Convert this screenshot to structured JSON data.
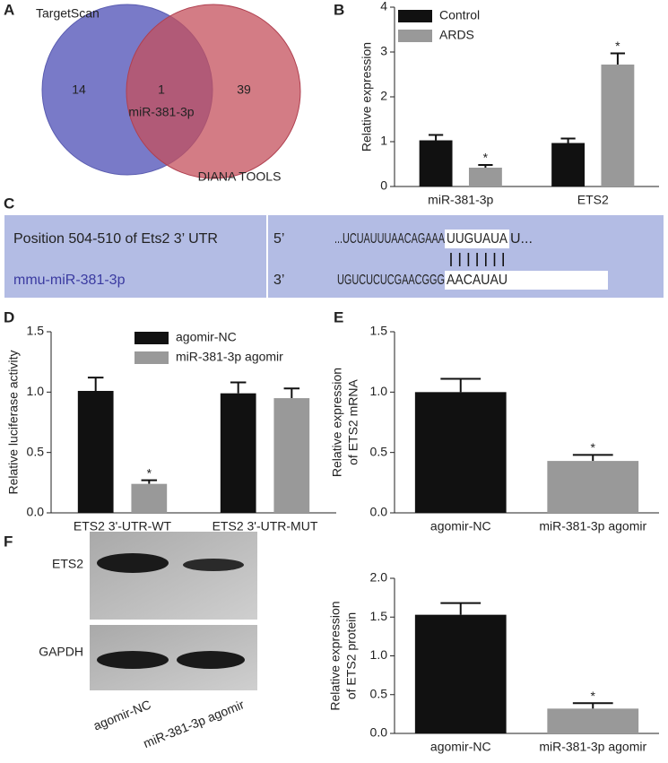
{
  "panel_labels": [
    "A",
    "B",
    "C",
    "D",
    "E",
    "F"
  ],
  "venn": {
    "sets": [
      "TargetScan",
      "DIANA TOOLS"
    ],
    "only_first": "14",
    "overlap": "1",
    "overlap_label": "miR-381-3p",
    "only_second": "39"
  },
  "sequence": {
    "rows": [
      {
        "name": "Position 504-510 of Ets2 3’ UTR",
        "end": "5’",
        "prefix": "...UCUAUUUAACAGAAA",
        "site": "UUGUAUA",
        "suffix": "U..."
      },
      {
        "name": "mmu-miR-381-3p",
        "end": "3’",
        "prefix": "UGUCUCUCGAACGGG",
        "site": "AACAUAU"
      }
    ]
  },
  "blot": {
    "proteins": [
      "ETS2",
      "GAPDH"
    ],
    "lanes": [
      "agomir-NC",
      "miR-381-3p agomir"
    ]
  },
  "chart_data": [
    {
      "type": "bar",
      "ylabel": [
        "Relative expression"
      ],
      "categories": [
        "miR-381-3p",
        "ETS2"
      ],
      "series": [
        {
          "name": "Control",
          "color": "#111111",
          "values": [
            1.03,
            0.97
          ],
          "errors": [
            0.12,
            0.1
          ],
          "significance": [
            null,
            null
          ]
        },
        {
          "name": "ARDS",
          "color": "#999999",
          "values": [
            0.42,
            2.72
          ],
          "errors": [
            0.06,
            0.25
          ],
          "significance": [
            "*",
            "*"
          ]
        }
      ],
      "ylim": [
        0,
        4
      ],
      "yticks": [
        0,
        1,
        2,
        3,
        4
      ],
      "legend": "top-left"
    },
    {
      "type": "bar",
      "ylabel": [
        "Relative luciferase activity"
      ],
      "categories": [
        "ETS2 3'-UTR-WT",
        "ETS2 3'-UTR-MUT"
      ],
      "series": [
        {
          "name": "agomir-NC",
          "color": "#111111",
          "values": [
            1.01,
            0.99
          ],
          "errors": [
            0.11,
            0.09
          ],
          "significance": [
            null,
            null
          ]
        },
        {
          "name": "miR-381-3p agomir",
          "color": "#999999",
          "values": [
            0.24,
            0.95
          ],
          "errors": [
            0.03,
            0.08
          ],
          "significance": [
            "*",
            null
          ]
        }
      ],
      "ylim": [
        0,
        1.5
      ],
      "yticks": [
        {
          "value": 0,
          "label": "0.0"
        },
        0.5,
        {
          "value": 1,
          "label": "1.0"
        },
        1.5
      ],
      "legend": "top-center"
    },
    {
      "type": "bar",
      "ylabel": [
        "Relative expression",
        "of ETS2 mRNA"
      ],
      "categories": [
        "agomir-NC",
        "miR-381-3p agomir"
      ],
      "values": [
        1.0,
        0.43
      ],
      "errors": [
        0.11,
        0.05
      ],
      "colors": [
        "#111111",
        "#999999"
      ],
      "significance": [
        null,
        "*"
      ],
      "ylim": [
        0,
        1.5
      ],
      "yticks": [
        {
          "value": 0,
          "label": "0.0"
        },
        0.5,
        {
          "value": 1,
          "label": "1.0"
        },
        1.5
      ]
    },
    {
      "type": "bar",
      "ylabel": [
        "Relative expression",
        "of ETS2 protein"
      ],
      "categories": [
        "agomir-NC",
        "miR-381-3p agomir"
      ],
      "values": [
        1.53,
        0.32
      ],
      "errors": [
        0.15,
        0.07
      ],
      "colors": [
        "#111111",
        "#999999"
      ],
      "significance": [
        null,
        "*"
      ],
      "ylim": [
        0,
        2
      ],
      "yticks": [
        {
          "value": 0,
          "label": "0.0"
        },
        0.5,
        {
          "value": 1,
          "label": "1.0"
        },
        1.5,
        {
          "value": 2,
          "label": "2.0"
        }
      ]
    }
  ]
}
